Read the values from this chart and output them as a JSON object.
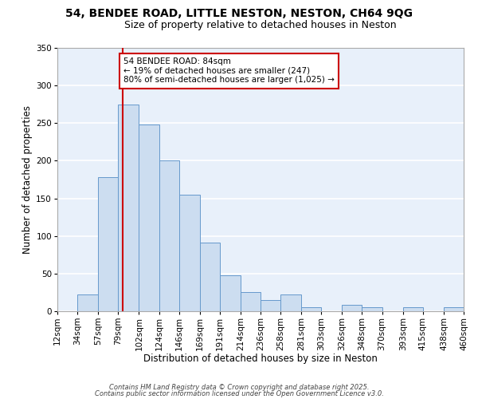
{
  "title_line1": "54, BENDEE ROAD, LITTLE NESTON, NESTON, CH64 9QG",
  "title_line2": "Size of property relative to detached houses in Neston",
  "xlabel": "Distribution of detached houses by size in Neston",
  "ylabel": "Number of detached properties",
  "bar_color": "#ccddf0",
  "bar_edge_color": "#6699cc",
  "background_color": "#e8f0fa",
  "grid_color": "#ffffff",
  "vline_color": "#cc0000",
  "vline_x": 84,
  "bin_edges": [
    12,
    34,
    57,
    79,
    102,
    124,
    146,
    169,
    191,
    214,
    236,
    258,
    281,
    303,
    326,
    348,
    370,
    393,
    415,
    438,
    460
  ],
  "bin_heights": [
    0,
    22,
    178,
    275,
    248,
    200,
    155,
    91,
    48,
    25,
    15,
    22,
    5,
    0,
    8,
    5,
    0,
    5,
    0,
    5
  ],
  "ylim": [
    0,
    350
  ],
  "yticks": [
    0,
    50,
    100,
    150,
    200,
    250,
    300,
    350
  ],
  "annotation_text": "54 BENDEE ROAD: 84sqm\n← 19% of detached houses are smaller (247)\n80% of semi-detached houses are larger (1,025) →",
  "annotation_box_color": "#ffffff",
  "annotation_box_edge": "#cc0000",
  "footer1": "Contains HM Land Registry data © Crown copyright and database right 2025.",
  "footer2": "Contains public sector information licensed under the Open Government Licence v3.0.",
  "title_fontsize": 10,
  "subtitle_fontsize": 9,
  "axis_label_fontsize": 8.5,
  "tick_fontsize": 7.5,
  "annot_fontsize": 7.5
}
